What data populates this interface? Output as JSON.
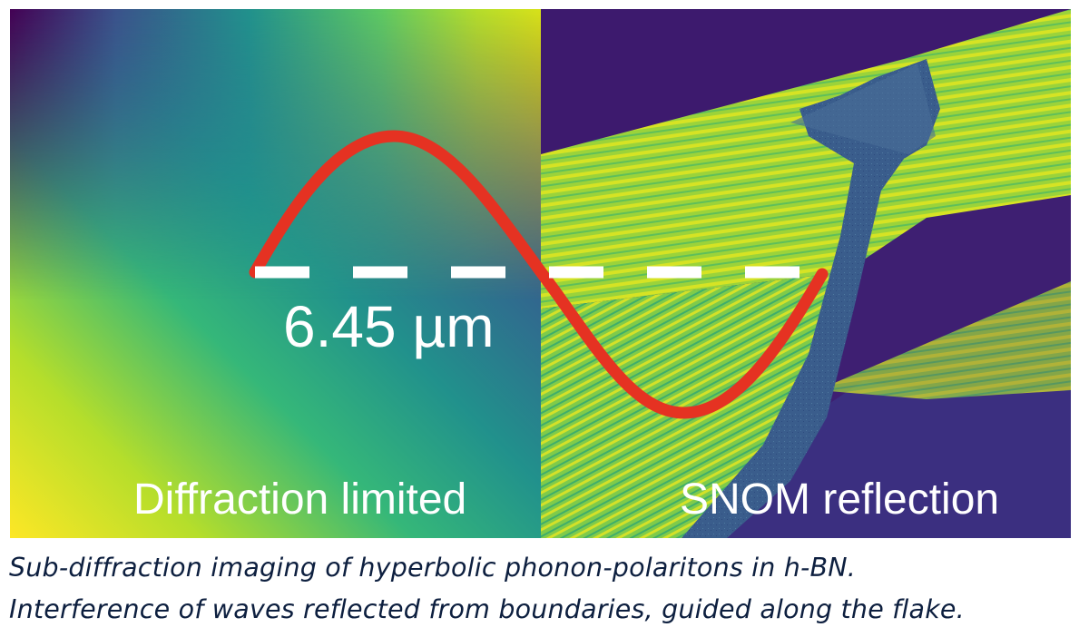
{
  "figure": {
    "left_panel_label": "Diffraction limited",
    "right_panel_label": "SNOM reflection",
    "scale_bar_label": "6.45 µm",
    "colors": {
      "wave_line": "#e53222",
      "scale_bar": "#ffffff",
      "viridis_dark": "#440154",
      "viridis_mid": "#21918c",
      "viridis_bright": "#fde725",
      "caption_text": "#0d1f3f"
    },
    "colormap": "viridis"
  },
  "caption": {
    "line1": "Sub-diffraction imaging of hyperbolic phonon-polaritons in h-BN.",
    "line2": "Interference of waves reflected from boundaries, guided along the flake."
  }
}
